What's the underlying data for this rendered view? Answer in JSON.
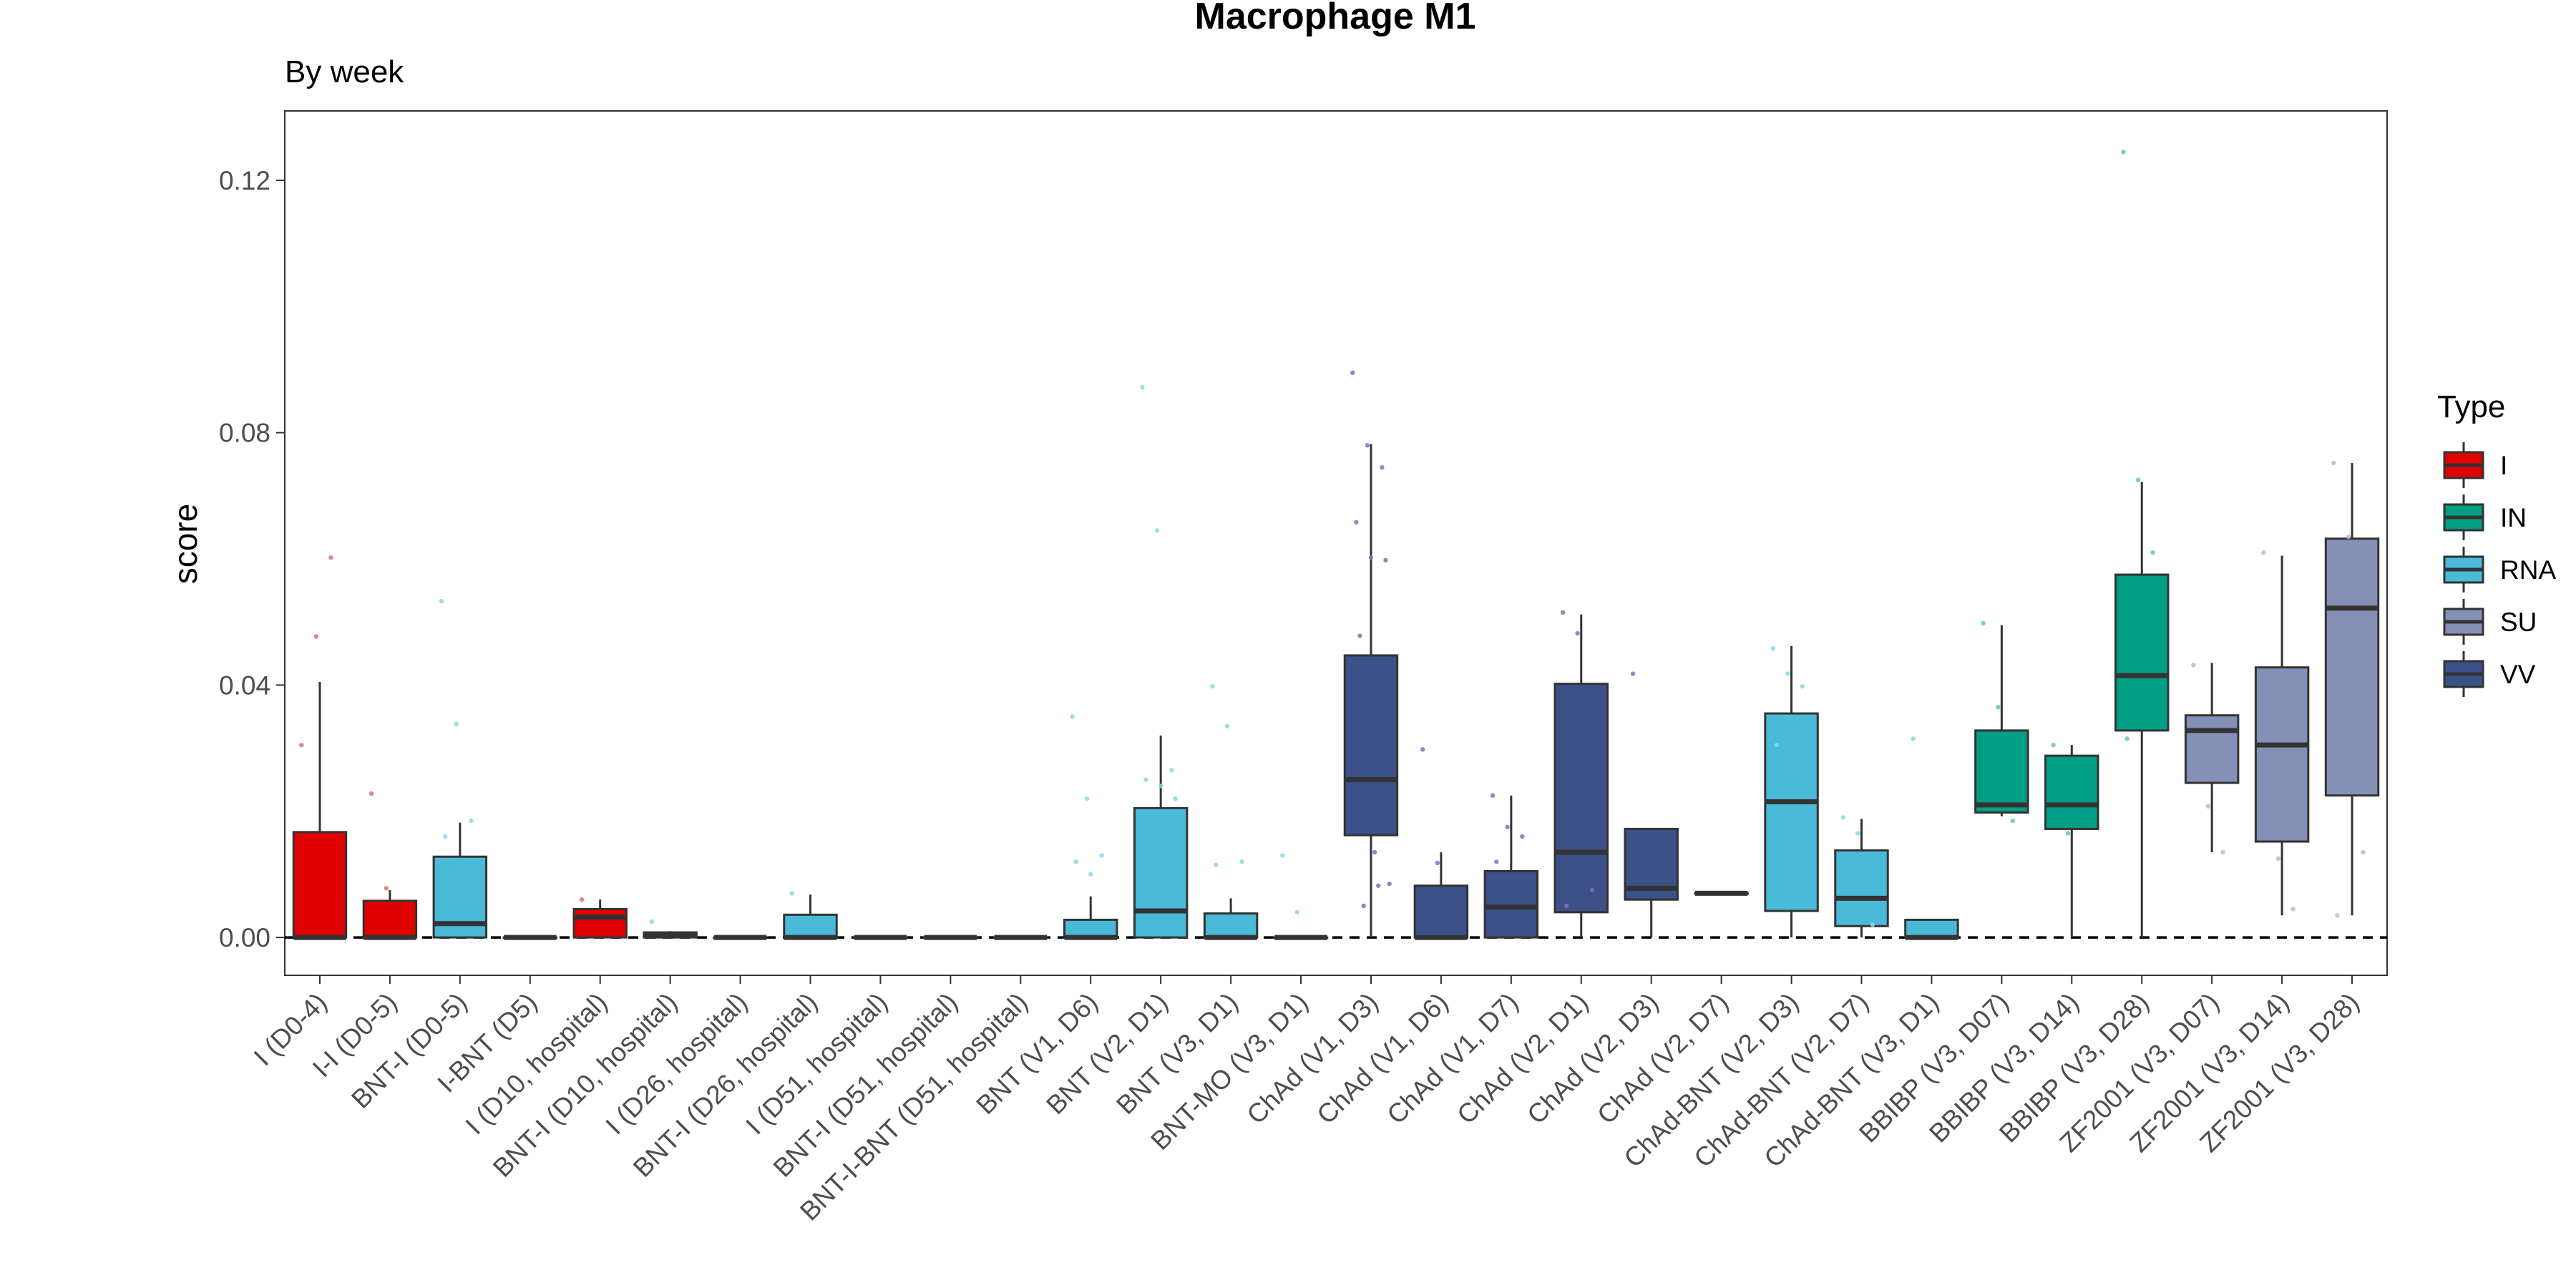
{
  "chart_data": {
    "type": "box",
    "title": "Macrophage M1",
    "subtitle": "By week",
    "xlabel": "",
    "ylabel": "score",
    "ylim": [
      -0.006,
      0.131
    ],
    "yticks": [
      0.0,
      0.04,
      0.08,
      0.12
    ],
    "ytick_labels": [
      "0.00",
      "0.04",
      "0.08",
      "0.12"
    ],
    "reference_line": {
      "y": 0.0,
      "style": "dashed"
    },
    "grid": false,
    "legend": {
      "title": "Type",
      "position": "right",
      "entries": [
        {
          "name": "I",
          "color": "#e10000"
        },
        {
          "name": "IN",
          "color": "#019e86"
        },
        {
          "name": "RNA",
          "color": "#49bad8"
        },
        {
          "name": "SU",
          "color": "#8590b6"
        },
        {
          "name": "VV",
          "color": "#3b5188"
        }
      ]
    },
    "point_colors": {
      "I": "#e07070",
      "IN": "#60c8b8",
      "RNA": "#8ad6ec",
      "SU": "#b4bbd4",
      "VV": "#8a6cc0"
    },
    "categories": [
      "I (D0-4)",
      "I-I (D0-5)",
      "BNT-I (D0-5)",
      "I-BNT (D5)",
      "I (D10, hospital)",
      "BNT-I (D10, hospital)",
      "I (D26, hospital)",
      "BNT-I (D26, hospital)",
      "I (D51, hospital)",
      "BNT-I (D51, hospital)",
      "BNT-I-BNT (D51, hospital)",
      "BNT (V1, D6)",
      "BNT (V2, D1)",
      "BNT (V3, D1)",
      "BNT-MO (V3, D1)",
      "ChAd (V1, D3)",
      "ChAd (V1, D6)",
      "ChAd (V1, D7)",
      "ChAd (V2, D1)",
      "ChAd (V2, D3)",
      "ChAd (V2, D7)",
      "ChAd-BNT (V2, D3)",
      "ChAd-BNT (V2, D7)",
      "ChAd-BNT (V3, D1)",
      "BBIBP (V3, D07)",
      "BBIBP (V3, D14)",
      "BBIBP (V3, D28)",
      "ZF2001 (V3, D07)",
      "ZF2001 (V3, D14)",
      "ZF2001 (V3, D28)"
    ],
    "boxes": [
      {
        "type": "I",
        "min": 0,
        "q1": 0,
        "median": 0,
        "q3": 0.0167,
        "max": 0.0405,
        "points": [
          0.0305,
          0.0477,
          0.0602
        ]
      },
      {
        "type": "I",
        "min": 0,
        "q1": 0,
        "median": 0,
        "q3": 0.0058,
        "max": 0.0075,
        "points": [
          0.0228,
          0.0078
        ]
      },
      {
        "type": "RNA",
        "min": 0,
        "q1": 0,
        "median": 0.0022,
        "q3": 0.0128,
        "max": 0.0182,
        "points": [
          0.0533,
          0.0338,
          0.0185,
          0.016
        ]
      },
      {
        "type": "RNA",
        "min": 0,
        "q1": 0,
        "median": 0,
        "q3": 0,
        "max": 0,
        "points": []
      },
      {
        "type": "I",
        "min": 0,
        "q1": 0,
        "median": 0.0032,
        "q3": 0.0045,
        "max": 0.006,
        "points": [
          0.006
        ]
      },
      {
        "type": "RNA",
        "min": 0,
        "q1": 0,
        "median": 0.0003,
        "q3": 0.0008,
        "max": 0.001,
        "points": [
          0.0025
        ]
      },
      {
        "type": "I",
        "min": 0,
        "q1": 0,
        "median": 0,
        "q3": 0,
        "max": 0,
        "points": []
      },
      {
        "type": "RNA",
        "min": 0,
        "q1": 0,
        "median": 0,
        "q3": 0.0036,
        "max": 0.0068,
        "points": [
          0.007
        ]
      },
      {
        "type": "I",
        "min": 0,
        "q1": 0,
        "median": 0,
        "q3": 0,
        "max": 0,
        "points": []
      },
      {
        "type": "RNA",
        "min": 0,
        "q1": 0,
        "median": 0,
        "q3": 0,
        "max": 0,
        "points": []
      },
      {
        "type": "RNA",
        "min": 0,
        "q1": 0,
        "median": 0,
        "q3": 0,
        "max": 0,
        "points": []
      },
      {
        "type": "RNA",
        "min": 0,
        "q1": 0,
        "median": 0,
        "q3": 0.0028,
        "max": 0.0065,
        "points": [
          0.035,
          0.022,
          0.013,
          0.012,
          0.01
        ]
      },
      {
        "type": "RNA",
        "min": 0,
        "q1": 0,
        "median": 0.0042,
        "q3": 0.0205,
        "max": 0.032,
        "points": [
          0.0872,
          0.0645,
          0.0265,
          0.025,
          0.024,
          0.022
        ]
      },
      {
        "type": "RNA",
        "min": 0,
        "q1": 0,
        "median": 0,
        "q3": 0.0038,
        "max": 0.0062,
        "points": [
          0.0398,
          0.0335,
          0.012,
          0.0115
        ]
      },
      {
        "type": "RNA",
        "min": 0,
        "q1": 0,
        "median": 0,
        "q3": 0,
        "max": 0,
        "points": [
          0.013,
          0.004
        ]
      },
      {
        "type": "VV",
        "min": 0,
        "q1": 0.0162,
        "median": 0.025,
        "q3": 0.0447,
        "max": 0.0782,
        "points": [
          0.0895,
          0.078,
          0.0745,
          0.0658,
          0.0602,
          0.0598,
          0.0478,
          0.0135,
          0.0085,
          0.005,
          0.0082
        ]
      },
      {
        "type": "VV",
        "min": 0,
        "q1": 0,
        "median": 0,
        "q3": 0.0082,
        "max": 0.0135,
        "points": [
          0.0298,
          0.0118
        ]
      },
      {
        "type": "VV",
        "min": 0,
        "q1": 0,
        "median": 0.0048,
        "q3": 0.0105,
        "max": 0.0225,
        "points": [
          0.0225,
          0.0175,
          0.016,
          0.012
        ]
      },
      {
        "type": "VV",
        "min": 0,
        "q1": 0.004,
        "median": 0.0135,
        "q3": 0.0402,
        "max": 0.0512,
        "points": [
          0.0515,
          0.0482,
          0.0075,
          0.005
        ]
      },
      {
        "type": "VV",
        "min": 0,
        "q1": 0.006,
        "median": 0.0078,
        "q3": 0.0172,
        "max": 0.0172,
        "points": [
          0.0418
        ]
      },
      {
        "type": "VV",
        "min": 0.007,
        "q1": 0.007,
        "median": 0.007,
        "q3": 0.007,
        "max": 0.007,
        "points": []
      },
      {
        "type": "RNA",
        "min": 0,
        "q1": 0.0042,
        "median": 0.0215,
        "q3": 0.0355,
        "max": 0.0462,
        "points": [
          0.0458,
          0.0418,
          0.0398,
          0.0305
        ]
      },
      {
        "type": "RNA",
        "min": 0,
        "q1": 0.0018,
        "median": 0.0062,
        "q3": 0.0138,
        "max": 0.0188,
        "points": [
          0.019,
          0.0165,
          0.002
        ]
      },
      {
        "type": "RNA",
        "min": 0,
        "q1": 0,
        "median": 0,
        "q3": 0.0028,
        "max": 0.0028,
        "points": [
          0.0315
        ]
      },
      {
        "type": "IN",
        "min": 0.0192,
        "q1": 0.0198,
        "median": 0.021,
        "q3": 0.0328,
        "max": 0.0495,
        "points": [
          0.0498,
          0.0365,
          0.0185
        ]
      },
      {
        "type": "IN",
        "min": 0,
        "q1": 0.0172,
        "median": 0.021,
        "q3": 0.0288,
        "max": 0.0305,
        "points": [
          0.0305,
          0.0165
        ]
      },
      {
        "type": "IN",
        "min": 0,
        "q1": 0.0328,
        "median": 0.0415,
        "q3": 0.0575,
        "max": 0.0722,
        "points": [
          0.1245,
          0.0725,
          0.061,
          0.0315
        ]
      },
      {
        "type": "SU",
        "min": 0.0135,
        "q1": 0.0245,
        "median": 0.0328,
        "q3": 0.0352,
        "max": 0.0435,
        "points": [
          0.0432,
          0.0208,
          0.0135
        ]
      },
      {
        "type": "SU",
        "min": 0.0035,
        "q1": 0.0152,
        "median": 0.0305,
        "q3": 0.0428,
        "max": 0.0605,
        "points": [
          0.061,
          0.0125,
          0.0045
        ]
      },
      {
        "type": "SU",
        "min": 0.0035,
        "q1": 0.0225,
        "median": 0.0522,
        "q3": 0.0632,
        "max": 0.0752,
        "points": [
          0.0752,
          0.0635,
          0.0135,
          0.0035
        ]
      }
    ]
  }
}
